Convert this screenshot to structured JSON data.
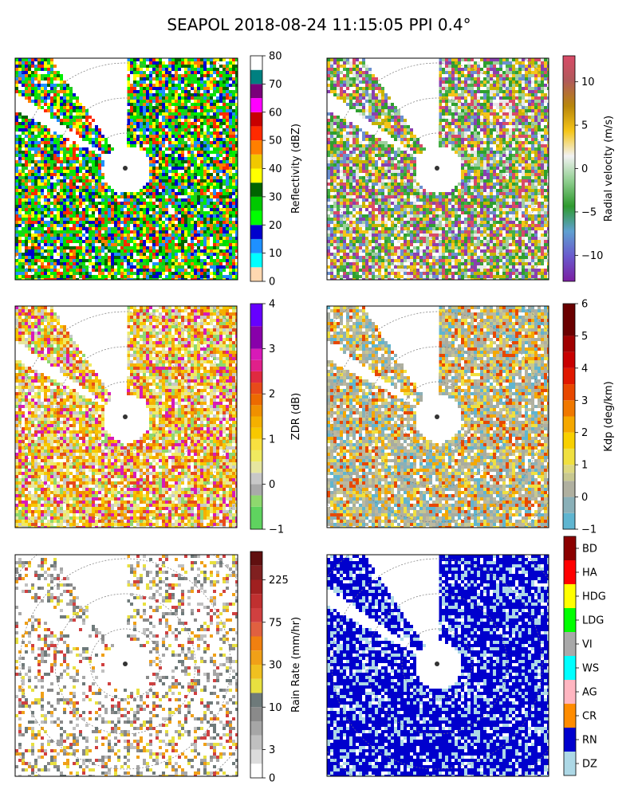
{
  "figure": {
    "title": "SEAPOL 2018-08-24 11:15:05 PPI 0.4°"
  },
  "chart_data": [
    {
      "type": "heatmap",
      "panel": "top-left",
      "field": "reflectivity",
      "colorbar": {
        "label": "Reflectivity (dBZ)",
        "range": [
          0,
          80
        ],
        "ticks": [
          0,
          10,
          20,
          30,
          40,
          50,
          60,
          70,
          80
        ],
        "bands": [
          {
            "v0": 0,
            "v1": 5,
            "color": "#ffd8b0"
          },
          {
            "v0": 5,
            "v1": 10,
            "color": "#00ffff"
          },
          {
            "v0": 10,
            "v1": 15,
            "color": "#1e90ff"
          },
          {
            "v0": 15,
            "v1": 20,
            "color": "#0000cd"
          },
          {
            "v0": 20,
            "v1": 25,
            "color": "#00ff00"
          },
          {
            "v0": 25,
            "v1": 30,
            "color": "#00c800"
          },
          {
            "v0": 30,
            "v1": 35,
            "color": "#006400"
          },
          {
            "v0": 35,
            "v1": 40,
            "color": "#ffff00"
          },
          {
            "v0": 40,
            "v1": 45,
            "color": "#f0c800"
          },
          {
            "v0": 45,
            "v1": 50,
            "color": "#ff7f00"
          },
          {
            "v0": 50,
            "v1": 55,
            "color": "#ff2a00"
          },
          {
            "v0": 55,
            "v1": 60,
            "color": "#c80000"
          },
          {
            "v0": 60,
            "v1": 65,
            "color": "#ff00ff"
          },
          {
            "v0": 65,
            "v1": 70,
            "color": "#7a007a"
          },
          {
            "v0": 70,
            "v1": 75,
            "color": "#008080"
          },
          {
            "v0": 75,
            "v1": 80,
            "color": "#ffffff"
          }
        ]
      },
      "palette": [
        "#00dd00",
        "#00ee00",
        "#22cc22",
        "#0000cd",
        "#1e90ff",
        "#ffff00",
        "#ff7f00",
        "#ff2a00",
        "#006400"
      ]
    },
    {
      "type": "heatmap",
      "panel": "top-right",
      "field": "radial_velocity",
      "colorbar": {
        "label": "Radial velocity (m/s)",
        "range": [
          -13,
          13
        ],
        "ticks": [
          -10,
          -5,
          0,
          5,
          10
        ],
        "gradient": [
          "#7b1fa2",
          "#6a5acd",
          "#5fa0d0",
          "#2e9a2e",
          "#8fce8f",
          "#f2f2f2",
          "#f5c518",
          "#b8860b",
          "#b05a5a",
          "#d94a68"
        ]
      },
      "palette": [
        "#2ea02e",
        "#45b045",
        "#9fd09f",
        "#e8e8e8",
        "#f5c518",
        "#d94a68",
        "#6a8fd0",
        "#8a3fb0",
        "#c8b400"
      ]
    },
    {
      "type": "heatmap",
      "panel": "middle-left",
      "field": "differential_reflectivity",
      "colorbar": {
        "label": "ZDR (dB)",
        "range": [
          -1,
          4
        ],
        "ticks": [
          -1,
          0,
          1,
          2,
          3,
          4
        ],
        "bands": [
          {
            "v0": -1,
            "v1": -0.5,
            "color": "#5fd35f"
          },
          {
            "v0": -0.5,
            "v1": -0.25,
            "color": "#8ed86e"
          },
          {
            "v0": -0.25,
            "v1": 0,
            "color": "#a9a9a9"
          },
          {
            "v0": 0,
            "v1": 0.25,
            "color": "#c8c8c8"
          },
          {
            "v0": 0.25,
            "v1": 0.5,
            "color": "#e6e6a0"
          },
          {
            "v0": 0.5,
            "v1": 0.75,
            "color": "#f0ea60"
          },
          {
            "v0": 0.75,
            "v1": 1,
            "color": "#f8e040"
          },
          {
            "v0": 1,
            "v1": 1.25,
            "color": "#f8c800"
          },
          {
            "v0": 1.25,
            "v1": 1.5,
            "color": "#f5b000"
          },
          {
            "v0": 1.5,
            "v1": 1.75,
            "color": "#f09000"
          },
          {
            "v0": 1.75,
            "v1": 2,
            "color": "#ec6a00"
          },
          {
            "v0": 2,
            "v1": 2.25,
            "color": "#e84a1a"
          },
          {
            "v0": 2.25,
            "v1": 2.5,
            "color": "#e02a40"
          },
          {
            "v0": 2.5,
            "v1": 2.75,
            "color": "#e0208a"
          },
          {
            "v0": 2.75,
            "v1": 3,
            "color": "#d81ab8"
          },
          {
            "v0": 3,
            "v1": 3.5,
            "color": "#8800aa"
          },
          {
            "v0": 3.5,
            "v1": 4,
            "color": "#6600ff"
          }
        ]
      },
      "palette": [
        "#f5b000",
        "#f8c800",
        "#e6e6a0",
        "#f09000",
        "#c8c8c8",
        "#8ed86e",
        "#e84a1a",
        "#d81ab8",
        "#f0ea60"
      ]
    },
    {
      "type": "heatmap",
      "panel": "middle-right",
      "field": "specific_differential_phase",
      "colorbar": {
        "label": "Kdp (deg/km)",
        "range": [
          -1,
          6
        ],
        "ticks": [
          -1,
          0,
          1,
          2,
          3,
          4,
          5,
          6
        ],
        "bands": [
          {
            "v0": -1,
            "v1": -0.5,
            "color": "#5fb5d0"
          },
          {
            "v0": -0.5,
            "v1": 0,
            "color": "#8ab0b8"
          },
          {
            "v0": 0,
            "v1": 0.5,
            "color": "#b0b0a0"
          },
          {
            "v0": 0.5,
            "v1": 0.75,
            "color": "#c8c890"
          },
          {
            "v0": 0.75,
            "v1": 1,
            "color": "#ddd880"
          },
          {
            "v0": 1,
            "v1": 1.5,
            "color": "#f0e040"
          },
          {
            "v0": 1.5,
            "v1": 2,
            "color": "#f8d000"
          },
          {
            "v0": 2,
            "v1": 2.5,
            "color": "#f5a800"
          },
          {
            "v0": 2.5,
            "v1": 3,
            "color": "#f07800"
          },
          {
            "v0": 3,
            "v1": 3.5,
            "color": "#e84800"
          },
          {
            "v0": 3.5,
            "v1": 4,
            "color": "#e01800"
          },
          {
            "v0": 4,
            "v1": 4.5,
            "color": "#c80000"
          },
          {
            "v0": 4.5,
            "v1": 5,
            "color": "#a00000"
          },
          {
            "v0": 5,
            "v1": 6,
            "color": "#6a0000"
          }
        ]
      },
      "palette": [
        "#b0b0a0",
        "#a8aca0",
        "#bcb8a0",
        "#c8c890",
        "#8ab0b8",
        "#5fb5d0",
        "#f0e040",
        "#e84800",
        "#f5a800"
      ]
    },
    {
      "type": "heatmap",
      "panel": "bottom-left",
      "field": "rain_rate",
      "colorbar": {
        "label": "Rain Rate (mm/hr)",
        "ticks": [
          "0",
          "3",
          "10",
          "30",
          "75",
          "225"
        ],
        "tick_band_index": [
          0,
          2,
          5,
          8,
          11,
          14
        ],
        "bands": [
          "#ffffff",
          "#dcdcdc",
          "#c0c0c0",
          "#a6a6a6",
          "#8a8a8a",
          "#6e7a7a",
          "#e8e040",
          "#f0c020",
          "#f0a018",
          "#f08010",
          "#e06040",
          "#d04040",
          "#c03030",
          "#a02020",
          "#802020",
          "#601010"
        ]
      },
      "palette": [
        "#8a8a8a",
        "#6e7a7a",
        "#a6a6a6",
        "#c0c0c0",
        "#e8e040",
        "#f0a018",
        "#d04040"
      ]
    },
    {
      "type": "heatmap",
      "panel": "bottom-right",
      "field": "hydrometeor_classification",
      "colorbar": {
        "categories": [
          "DZ",
          "RN",
          "CR",
          "AG",
          "WS",
          "VI",
          "LDG",
          "HDG",
          "HA",
          "BD"
        ],
        "colors": [
          "#add8e6",
          "#0000cd",
          "#ff8c00",
          "#ffb6c1",
          "#00ffff",
          "#a9a9a9",
          "#00ff00",
          "#ffff00",
          "#ff0000",
          "#8b0000"
        ]
      },
      "palette": [
        "#0000cd",
        "#0000cd",
        "#0000cd",
        "#add8e6"
      ]
    }
  ]
}
